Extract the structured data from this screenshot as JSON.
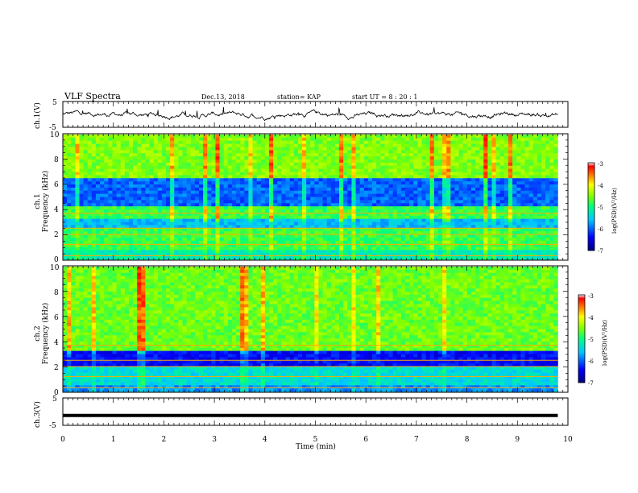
{
  "header": {
    "title": "VLF Spectra",
    "date": "Dec.13, 2018",
    "station": "station= KAP",
    "start_ut": "start  UT =   8 : 20 : 1"
  },
  "chart_data": [
    {
      "type": "line",
      "ylabel": "ch.1(V)",
      "ylim": [
        -5,
        5
      ],
      "yticks": [
        "5",
        "-5"
      ],
      "description_of_series": "noisy voltage trace between about -2 and 2.5 V over 0 to 9.8 min"
    },
    {
      "type": "heatmap",
      "ylabel": "ch.1\nFrequency (kHz)",
      "ylim": [
        0,
        10
      ],
      "yticks": [
        "0",
        "2",
        "4",
        "6",
        "8",
        "10"
      ],
      "colorbar": {
        "label": "log(PSD)(V²/Hz)",
        "ticks": [
          "-3",
          "-4",
          "-5",
          "-6",
          "-7"
        ],
        "range": [
          -7,
          -3
        ]
      },
      "x_extent": [
        0,
        9.8
      ]
    },
    {
      "type": "heatmap",
      "ylabel": "ch.2\nFrequency (kHz)",
      "ylim": [
        0,
        10
      ],
      "yticks": [
        "0",
        "2",
        "4",
        "6",
        "8",
        "10"
      ],
      "colorbar": {
        "label": "log(PSD)(V²/Hz)",
        "ticks": [
          "-3",
          "-4",
          "-5",
          "-6",
          "-7"
        ],
        "range": [
          -7,
          -3
        ]
      },
      "x_extent": [
        0,
        9.8
      ]
    },
    {
      "type": "line",
      "ylabel": "ch.3(V)",
      "ylim": [
        -5,
        5
      ],
      "yticks": [
        "5",
        "-5"
      ],
      "series": [
        {
          "x": [
            0,
            9.8
          ],
          "y": [
            -1.4,
            -1.4
          ]
        }
      ]
    }
  ],
  "xaxis": {
    "label": "Time (min)",
    "ticks": [
      "0",
      "1",
      "2",
      "3",
      "4",
      "5",
      "6",
      "7",
      "8",
      "9",
      "10"
    ],
    "range": [
      0,
      10
    ]
  },
  "ui": {
    "ch1_ylabel": "ch.1(V)",
    "ch3_ylabel": "ch.3(V)",
    "spec1_ylabel_a": "ch.1",
    "spec2_ylabel_a": "ch.2",
    "spec_ylabel_b": "Frequency (kHz)",
    "colorbar_label": "log(PSD)(V²/Hz)"
  }
}
